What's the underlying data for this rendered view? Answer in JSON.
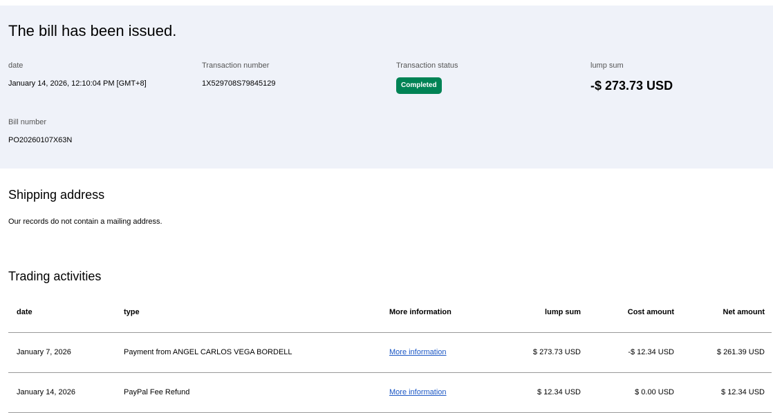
{
  "summary": {
    "title": "The bill has been issued.",
    "date_label": "date",
    "date_value": "January 14, 2026, 12:10:04 PM [GMT+8]",
    "txn_label": "Transaction number",
    "txn_value": "1X529708S79845129",
    "status_label": "Transaction status",
    "status_value": "Completed",
    "status_color": "#008355",
    "sum_label": "lump sum",
    "sum_value": "-$ 273.73 USD",
    "bill_label": "Bill number",
    "bill_value": "PO20260107X63N"
  },
  "shipping": {
    "heading": "Shipping address",
    "text": "Our records do not contain a mailing address."
  },
  "trading": {
    "heading": "Trading activities",
    "columns": [
      "date",
      "type",
      "More information",
      "lump sum",
      "Cost amount",
      "Net amount"
    ],
    "rows": [
      [
        "January 7, 2026",
        "Payment from ANGEL CARLOS VEGA BORDELL",
        "More information",
        "$ 273.73 USD",
        "-$ 12.34 USD",
        "$ 261.39 USD"
      ],
      [
        "January 14, 2026",
        "PayPal Fee Refund",
        "More information",
        "$ 12.34 USD",
        "$ 0.00 USD",
        "$ 12.34 USD"
      ]
    ]
  }
}
